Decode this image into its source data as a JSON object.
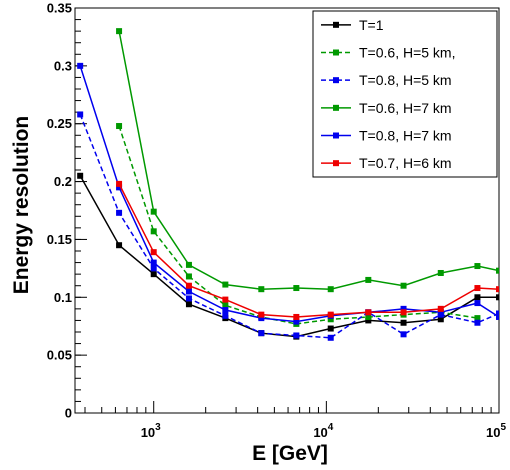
{
  "chart_data": {
    "type": "line",
    "xlabel": "E [GeV]",
    "ylabel": "Energy resolution",
    "xscale": "log",
    "xlim": [
      350,
      100000
    ],
    "ylim": [
      0,
      0.35
    ],
    "grid": false,
    "legend_position": "top-right",
    "y_ticks": [
      {
        "value": 0,
        "label": "0"
      },
      {
        "value": 0.05,
        "label": "0.05"
      },
      {
        "value": 0.1,
        "label": "0.1"
      },
      {
        "value": 0.15,
        "label": "0.15"
      },
      {
        "value": 0.2,
        "label": "0.2"
      },
      {
        "value": 0.25,
        "label": "0.25"
      },
      {
        "value": 0.3,
        "label": "0.3"
      },
      {
        "value": 0.35,
        "label": "0.35"
      }
    ],
    "x_ticks": [
      {
        "value": 1000,
        "base": "10",
        "exp": "3"
      },
      {
        "value": 10000,
        "base": "10",
        "exp": "4"
      },
      {
        "value": 100000,
        "base": "10",
        "exp": "5"
      }
    ],
    "series": [
      {
        "name": "T=1",
        "color": "#000000",
        "dashed": false,
        "x": [
          375,
          630,
          1000,
          1600,
          2600,
          4200,
          6700,
          10600,
          17500,
          28000,
          46000,
          75000,
          100000
        ],
        "y": [
          0.205,
          0.145,
          0.12,
          0.094,
          0.082,
          0.069,
          0.066,
          0.073,
          0.08,
          0.078,
          0.081,
          0.1,
          0.1
        ]
      },
      {
        "name": "T=0.6, H=5 km,",
        "color": "#009900",
        "dashed": true,
        "x": [
          630,
          1000,
          1600,
          2600,
          4200,
          6700,
          10600,
          17500,
          28000,
          46000,
          75000
        ],
        "y": [
          0.248,
          0.157,
          0.118,
          0.093,
          0.083,
          0.077,
          0.081,
          0.083,
          0.085,
          0.087,
          0.082
        ]
      },
      {
        "name": "T=0.8, H=5 km",
        "color": "#0000ee",
        "dashed": true,
        "x": [
          375,
          630,
          1000,
          1600,
          2600,
          4200,
          6700,
          10600,
          17500,
          28000,
          46000,
          75000,
          100000
        ],
        "y": [
          0.258,
          0.173,
          0.125,
          0.099,
          0.084,
          0.069,
          0.067,
          0.065,
          0.087,
          0.068,
          0.085,
          0.078,
          0.086
        ]
      },
      {
        "name": "T=0.6, H=7 km",
        "color": "#009900",
        "dashed": false,
        "x": [
          630,
          1000,
          1600,
          2600,
          4200,
          6700,
          10600,
          17500,
          28000,
          46000,
          75000,
          100000
        ],
        "y": [
          0.33,
          0.174,
          0.128,
          0.111,
          0.107,
          0.108,
          0.107,
          0.115,
          0.11,
          0.121,
          0.127,
          0.123
        ]
      },
      {
        "name": "T=0.8, H=7 km",
        "color": "#0000ee",
        "dashed": false,
        "x": [
          375,
          630,
          1000,
          1600,
          2600,
          4200,
          6700,
          10600,
          17500,
          28000,
          46000,
          75000,
          100000
        ],
        "y": [
          0.3,
          0.195,
          0.13,
          0.105,
          0.089,
          0.082,
          0.079,
          0.084,
          0.087,
          0.09,
          0.087,
          0.095,
          0.083
        ]
      },
      {
        "name": "T=0.7, H=6 km",
        "color": "#ee0000",
        "dashed": false,
        "x": [
          630,
          1000,
          1600,
          2600,
          4200,
          6700,
          10600,
          17500,
          28000,
          46000,
          75000,
          100000
        ],
        "y": [
          0.198,
          0.139,
          0.11,
          0.098,
          0.085,
          0.083,
          0.085,
          0.087,
          0.087,
          0.09,
          0.108,
          0.107
        ]
      }
    ]
  }
}
